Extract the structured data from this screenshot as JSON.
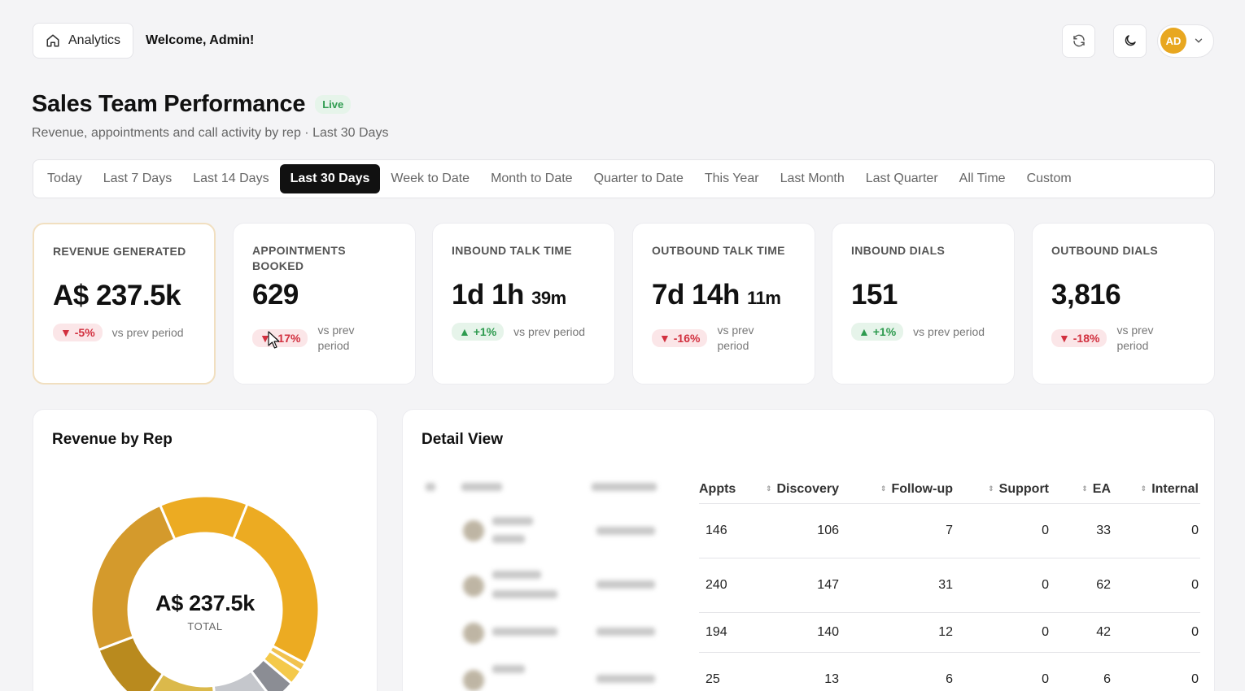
{
  "topbar": {
    "crumb_label": "Analytics",
    "welcome": "Welcome, Admin!",
    "avatar_initials": "AD"
  },
  "header": {
    "title": "Sales Team Performance",
    "badge": "Live",
    "subtitle": "Revenue, appointments and call activity by rep · Last 30 Days"
  },
  "ranges": [
    "Today",
    "Last 7 Days",
    "Last 14 Days",
    "Last 30 Days",
    "Week to Date",
    "Month to Date",
    "Quarter to Date",
    "This Year",
    "Last Month",
    "Last Quarter",
    "All Time",
    "Custom"
  ],
  "active_range": "Last 30 Days",
  "kpis": [
    {
      "label": "REVENUE GENERATED",
      "value": "A$ 237.5k",
      "unit": "",
      "delta": "▼ -5%",
      "trend": "down",
      "vs": "vs prev period"
    },
    {
      "label": "APPOINTMENTS BOOKED",
      "value": "629",
      "unit": "",
      "delta": "▼ -17%",
      "trend": "down",
      "vs": "vs prev period"
    },
    {
      "label": "INBOUND TALK TIME",
      "value": "1d 1h",
      "unit": "39m",
      "delta": "▲ +1%",
      "trend": "up",
      "vs": "vs prev period"
    },
    {
      "label": "OUTBOUND TALK TIME",
      "value": "7d 14h",
      "unit": "11m",
      "delta": "▼ -16%",
      "trend": "down",
      "vs": "vs prev period"
    },
    {
      "label": "INBOUND DIALS",
      "value": "151",
      "unit": "",
      "delta": "▲ +1%",
      "trend": "up",
      "vs": "vs prev period"
    },
    {
      "label": "OUTBOUND DIALS",
      "value": "3,816",
      "unit": "",
      "delta": "▼ -18%",
      "trend": "down",
      "vs": "vs prev period"
    }
  ],
  "revenue_panel": {
    "title": "Revenue by Rep",
    "center_value": "A$ 237.5k",
    "center_label": "TOTAL"
  },
  "chart_data": {
    "type": "pie",
    "donut": true,
    "slices": [
      {
        "share": 0.268,
        "color": "#ecab22"
      },
      {
        "share": 0.012,
        "color": "#f1c24f"
      },
      {
        "share": 0.022,
        "color": "#f4c94a"
      },
      {
        "share": 0.035,
        "color": "#8b8d94"
      },
      {
        "share": 0.085,
        "color": "#c5c7cc"
      },
      {
        "share": 0.11,
        "color": "#dbb94b"
      },
      {
        "share": 0.1,
        "color": "#b98a1e"
      },
      {
        "share": 0.243,
        "color": "#d49a2c"
      },
      {
        "share": 0.125,
        "color": "#ecab22"
      }
    ]
  },
  "detail_panel": {
    "title": "Detail View",
    "columns": [
      "Appts",
      "Discovery",
      "Follow-up",
      "Support",
      "EA",
      "Internal"
    ],
    "rows": [
      [
        "146",
        "106",
        "7",
        "0",
        "33",
        "0"
      ],
      [
        "240",
        "147",
        "31",
        "0",
        "62",
        "0"
      ],
      [
        "194",
        "140",
        "12",
        "0",
        "42",
        "0"
      ],
      [
        "25",
        "13",
        "6",
        "0",
        "6",
        "0"
      ]
    ]
  }
}
